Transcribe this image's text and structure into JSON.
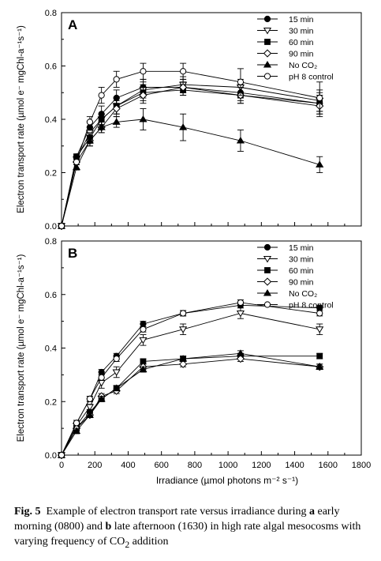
{
  "x_axis": {
    "label": "Irradiance (µmol photons m⁻² s⁻¹)",
    "ticks": [
      0,
      200,
      400,
      600,
      800,
      1000,
      1200,
      1400,
      1600,
      1800
    ],
    "range": [
      0,
      1800
    ]
  },
  "legend_entries": [
    {
      "key": "15 min",
      "label": "15 min",
      "marker": "circle-filled"
    },
    {
      "key": "30 min",
      "label": "30 min",
      "marker": "triangle-down-open"
    },
    {
      "key": "60 min",
      "label": "60 min",
      "marker": "square-filled"
    },
    {
      "key": "90 min",
      "label": "90 min",
      "marker": "diamond-open"
    },
    {
      "key": "No CO2",
      "label": "No CO₂",
      "marker": "triangle-up-filled"
    },
    {
      "key": "pH 8 control",
      "label": "pH 8 control",
      "marker": "circle-open"
    }
  ],
  "caption": {
    "fig_label": "Fig. 5",
    "text_1": "Example of electron transport rate versus irradiance during ",
    "a": "a",
    "text_2": " early morning (0800) and ",
    "b": "b",
    "text_3": " late afternoon (1630) in high rate algal mesocosms with varying frequency of CO",
    "sub": "2",
    "text_4": " addition"
  },
  "chart_data": [
    {
      "panel": "A",
      "type": "line",
      "ylabel": "Electron transport rate (µmol e⁻ mgChl-a⁻¹s⁻¹)",
      "xlabel": "",
      "xlim": [
        0,
        1800
      ],
      "ylim": [
        0,
        0.8
      ],
      "yticks": [
        0.0,
        0.2,
        0.4,
        0.6,
        0.8
      ],
      "grid": false,
      "legend": "top-right",
      "x": [
        0,
        90,
        170,
        240,
        330,
        490,
        730,
        1075,
        1550
      ],
      "series": [
        {
          "name": "15 min",
          "values": [
            0.0,
            0.26,
            0.37,
            0.42,
            0.48,
            0.52,
            0.52,
            0.5,
            0.46
          ],
          "err": [
            0,
            0.01,
            0.02,
            0.03,
            0.03,
            0.03,
            0.02,
            0.03,
            0.04
          ]
        },
        {
          "name": "30 min",
          "values": [
            0.0,
            0.25,
            0.35,
            0.4,
            0.45,
            0.51,
            0.53,
            0.52,
            0.47
          ],
          "err": [
            0,
            0.01,
            0.02,
            0.02,
            0.03,
            0.03,
            0.03,
            0.03,
            0.04
          ]
        },
        {
          "name": "60 min",
          "values": [
            0.0,
            0.26,
            0.33,
            0.4,
            0.45,
            0.5,
            0.51,
            0.49,
            0.46
          ],
          "err": [
            0,
            0.01,
            0.02,
            0.02,
            0.03,
            0.03,
            0.02,
            0.03,
            0.03
          ]
        },
        {
          "name": "90 min",
          "values": [
            0.0,
            0.24,
            0.32,
            0.37,
            0.44,
            0.49,
            0.52,
            0.49,
            0.45
          ],
          "err": [
            0,
            0.01,
            0.02,
            0.02,
            0.03,
            0.03,
            0.03,
            0.03,
            0.04
          ]
        },
        {
          "name": "No CO₂",
          "values": [
            0.0,
            0.22,
            0.32,
            0.37,
            0.39,
            0.4,
            0.37,
            0.32,
            0.23
          ],
          "err": [
            0,
            0.01,
            0.02,
            0.02,
            0.02,
            0.04,
            0.05,
            0.04,
            0.03
          ]
        },
        {
          "name": "pH 8 control",
          "values": [
            0.0,
            0.24,
            0.39,
            0.49,
            0.55,
            0.58,
            0.58,
            0.54,
            0.48
          ],
          "err": [
            0,
            0.01,
            0.02,
            0.03,
            0.03,
            0.03,
            0.03,
            0.05,
            0.06
          ]
        }
      ]
    },
    {
      "panel": "B",
      "type": "line",
      "ylabel": "Electron transport rate (µmol e⁻ mgChl-a⁻¹s⁻¹)",
      "xlabel": "Irradiance (µmol photons m⁻² s⁻¹)",
      "xlim": [
        0,
        1800
      ],
      "ylim": [
        0,
        0.8
      ],
      "yticks": [
        0.0,
        0.2,
        0.4,
        0.6,
        0.8
      ],
      "grid": false,
      "legend": "top-right",
      "x": [
        0,
        90,
        170,
        240,
        330,
        490,
        730,
        1075,
        1550
      ],
      "series": [
        {
          "name": "15 min",
          "values": [
            0.0,
            0.12,
            0.21,
            0.31,
            0.37,
            0.49,
            0.53,
            0.56,
            0.55
          ],
          "err": [
            0,
            0.01,
            0.01,
            0.01,
            0.01,
            0.01,
            0.01,
            0.01,
            0.01
          ]
        },
        {
          "name": "30 min",
          "values": [
            0.0,
            0.11,
            0.18,
            0.27,
            0.31,
            0.43,
            0.47,
            0.53,
            0.47
          ],
          "err": [
            0,
            0.01,
            0.01,
            0.02,
            0.02,
            0.02,
            0.02,
            0.02,
            0.02
          ]
        },
        {
          "name": "60 min",
          "values": [
            0.0,
            0.1,
            0.16,
            0.21,
            0.25,
            0.35,
            0.36,
            0.37,
            0.37
          ],
          "err": [
            0,
            0.01,
            0.01,
            0.01,
            0.01,
            0.01,
            0.01,
            0.01,
            0.01
          ]
        },
        {
          "name": "90 min",
          "values": [
            0.0,
            0.1,
            0.15,
            0.22,
            0.24,
            0.33,
            0.34,
            0.36,
            0.33
          ],
          "err": [
            0,
            0.01,
            0.01,
            0.01,
            0.01,
            0.01,
            0.01,
            0.01,
            0.01
          ]
        },
        {
          "name": "No CO₂",
          "values": [
            0.0,
            0.09,
            0.15,
            0.21,
            0.25,
            0.32,
            0.36,
            0.38,
            0.33
          ],
          "err": [
            0,
            0.01,
            0.01,
            0.01,
            0.01,
            0.01,
            0.01,
            0.01,
            0.01
          ]
        },
        {
          "name": "pH 8 control",
          "values": [
            0.0,
            0.12,
            0.21,
            0.29,
            0.36,
            0.47,
            0.53,
            0.57,
            0.53
          ],
          "err": [
            0,
            0.01,
            0.01,
            0.01,
            0.01,
            0.01,
            0.01,
            0.01,
            0.01
          ]
        }
      ]
    }
  ]
}
